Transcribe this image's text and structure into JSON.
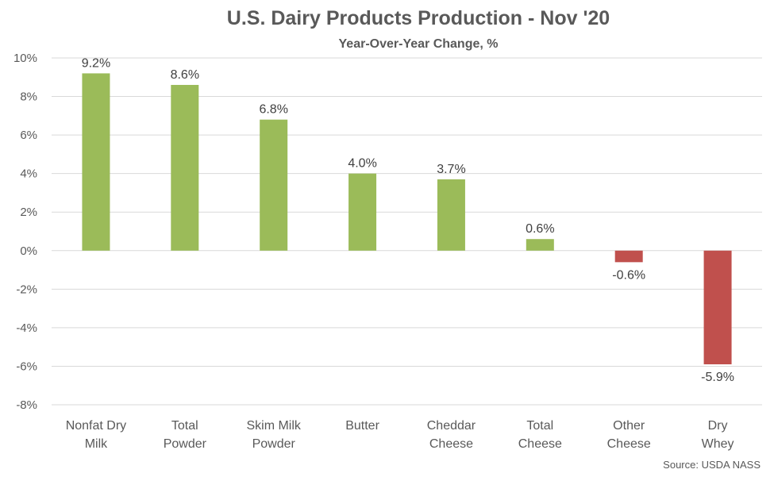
{
  "chart_data": {
    "type": "bar",
    "title": "U.S. Dairy Products Production - Nov '20",
    "subtitle": "Year-Over-Year Change, %",
    "categories": [
      [
        "Nonfat Dry",
        "Milk"
      ],
      [
        "Total",
        "Powder"
      ],
      [
        "Skim Milk",
        "Powder"
      ],
      [
        "Butter"
      ],
      [
        "Cheddar",
        "Cheese"
      ],
      [
        "Total",
        "Cheese"
      ],
      [
        "Other",
        "Cheese"
      ],
      [
        "Dry",
        "Whey"
      ]
    ],
    "values": [
      9.2,
      8.6,
      6.8,
      4.0,
      3.7,
      0.6,
      -0.6,
      -5.9
    ],
    "data_labels": [
      "9.2%",
      "8.6%",
      "6.8%",
      "4.0%",
      "3.7%",
      "0.6%",
      "-0.6%",
      "-5.9%"
    ],
    "ylim": [
      -8,
      10
    ],
    "yticks": [
      10,
      8,
      6,
      4,
      2,
      0,
      -2,
      -4,
      -6,
      -8
    ],
    "ytick_labels": [
      "10%",
      "8%",
      "6%",
      "4%",
      "2%",
      "0%",
      "-2%",
      "-4%",
      "-6%",
      "-8%"
    ],
    "grid": true,
    "colors": {
      "positive": "#9BBB59",
      "negative": "#C0504D",
      "grid": "#D9D9D9"
    },
    "source": "Source: USDA NASS"
  }
}
